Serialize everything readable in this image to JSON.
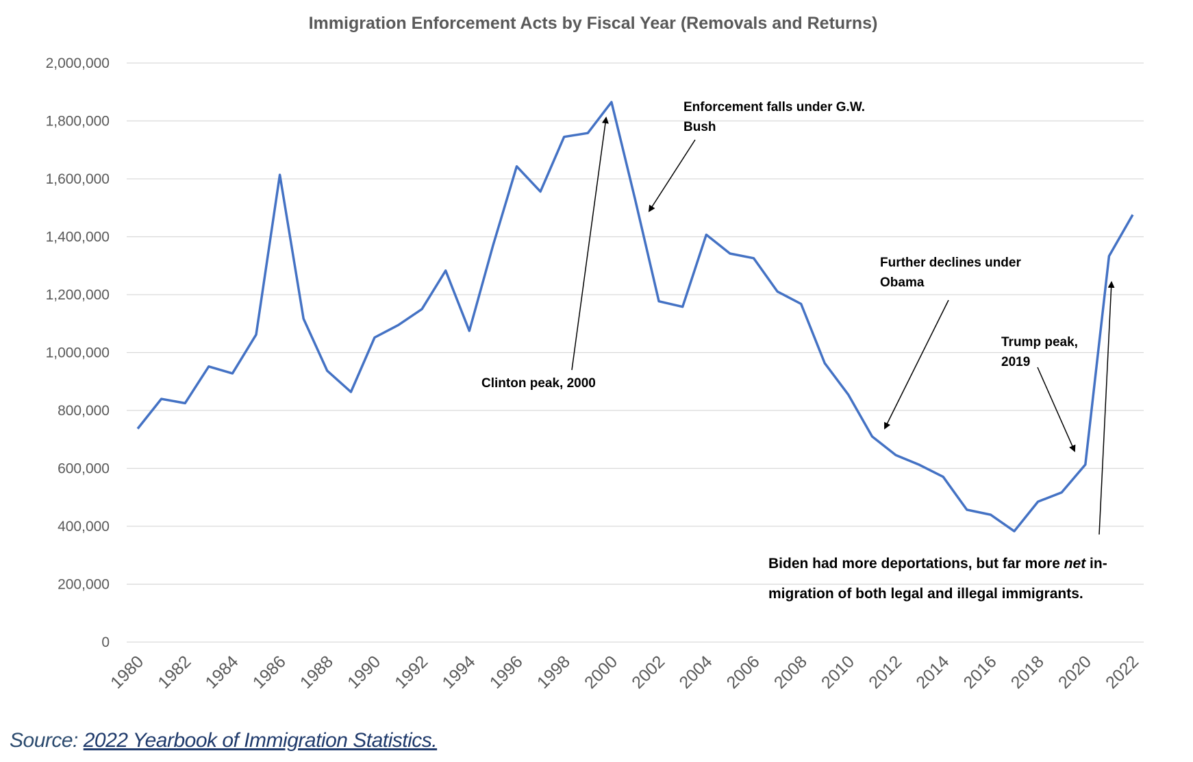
{
  "chart_data": {
    "type": "line",
    "title": "Immigration Enforcement Acts by Fiscal Year (Removals and Returns)",
    "xlabel": "",
    "ylabel": "",
    "ylim": [
      0,
      2000000
    ],
    "yticks": [
      0,
      200000,
      400000,
      600000,
      800000,
      1000000,
      1200000,
      1400000,
      1600000,
      1800000,
      2000000
    ],
    "ytick_labels": [
      "0",
      "200,000",
      "400,000",
      "600,000",
      "800,000",
      "1,000,000",
      "1,200,000",
      "1,400,000",
      "1,600,000",
      "1,800,000",
      "2,000,000"
    ],
    "x": [
      1980,
      1981,
      1982,
      1983,
      1984,
      1985,
      1986,
      1987,
      1988,
      1989,
      1990,
      1991,
      1992,
      1993,
      1994,
      1995,
      1996,
      1997,
      1998,
      1999,
      2000,
      2001,
      2002,
      2003,
      2004,
      2005,
      2006,
      2007,
      2008,
      2009,
      2010,
      2011,
      2012,
      2013,
      2014,
      2015,
      2016,
      2017,
      2018,
      2019,
      2020,
      2021,
      2022
    ],
    "xtick_labels": [
      "1980",
      "1982",
      "1984",
      "1986",
      "1988",
      "1990",
      "1992",
      "1994",
      "1996",
      "1998",
      "2000",
      "2002",
      "2004",
      "2006",
      "2008",
      "2010",
      "2012",
      "2014",
      "2016",
      "2018",
      "2020",
      "2022"
    ],
    "series": [
      {
        "color": "#4472c4",
        "values": [
          737000,
          840000,
          825000,
          952000,
          928000,
          1062000,
          1614000,
          1117000,
          937000,
          864000,
          1052000,
          1095000,
          1150000,
          1283000,
          1075000,
          1370000,
          1643000,
          1556000,
          1745000,
          1758000,
          1865000,
          1528000,
          1177000,
          1158000,
          1407000,
          1342000,
          1326000,
          1211000,
          1168000,
          963000,
          854000,
          710000,
          646000,
          612000,
          571000,
          457000,
          440000,
          383000,
          485000,
          517000,
          613000,
          1333000,
          1476000
        ]
      }
    ],
    "grid": true,
    "legend": "none",
    "annotations": [
      {
        "lines": [
          "Enforcement falls under G.W.",
          "Bush"
        ],
        "arrow_to_year": 2001.6
      },
      {
        "lines": [
          "Clinton peak, 2000"
        ],
        "arrow_to_year": 2000
      },
      {
        "lines": [
          "Further declines under",
          "Obama"
        ],
        "arrow_to_year": 2011.5
      },
      {
        "lines": [
          "Trump peak,",
          "2019"
        ],
        "arrow_to_year": 2019
      },
      {
        "lines": [
          "Biden had more deportations, but far more net in-",
          "migration of both legal and illegal immigrants."
        ],
        "arrow_to_year": 2021.4
      }
    ]
  },
  "source": {
    "prefix": "Source: ",
    "link_text": "2022 Yearbook of Immigration Statistics."
  }
}
